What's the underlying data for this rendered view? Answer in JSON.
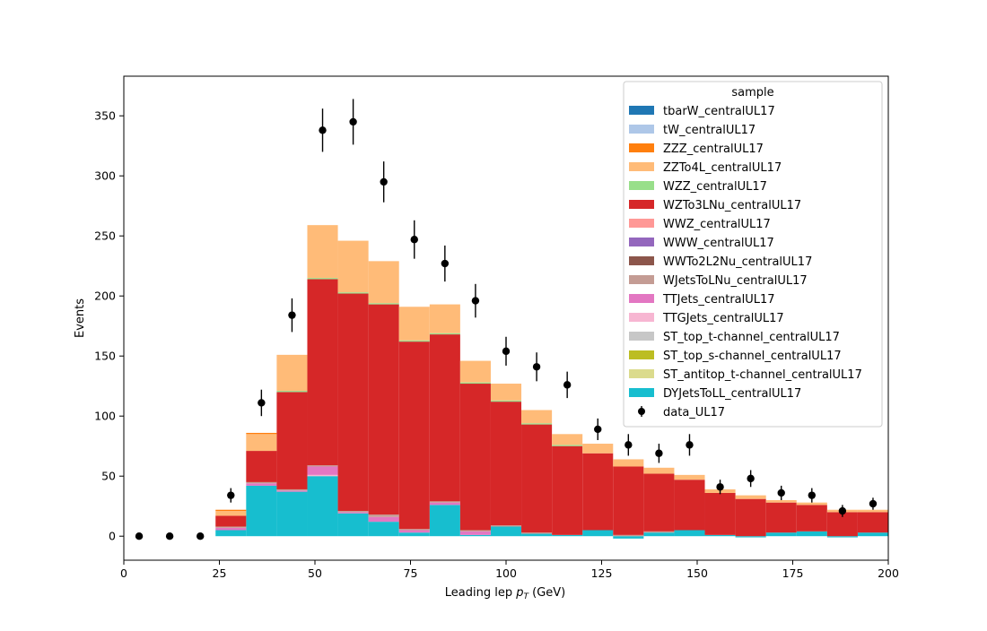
{
  "chart_data": {
    "type": "bar",
    "stacked": true,
    "xlabel": "Leading lep p_T (GeV)",
    "xlabel_main": "Leading lep ",
    "xlabel_sym": "p",
    "xlabel_sub": "T",
    "xlabel_unit": " (GeV)",
    "ylabel": "Events",
    "xlim": [
      0,
      200
    ],
    "ylim": [
      -20,
      383
    ],
    "xticks": [
      0,
      25,
      50,
      75,
      100,
      125,
      150,
      175,
      200
    ],
    "yticks": [
      0,
      50,
      100,
      150,
      200,
      250,
      300,
      350
    ],
    "grid": false,
    "legend_placement": "top-right",
    "legend_title": "sample",
    "bin_edges": [
      24,
      32,
      40,
      48,
      56,
      64,
      72,
      80,
      88,
      96,
      104,
      112,
      120,
      128,
      136,
      144,
      152,
      160,
      168,
      176,
      184,
      192,
      200
    ],
    "series": [
      {
        "name": "DYJetsToLL_centralUL17",
        "color": "#17becf",
        "values": [
          5,
          42,
          37,
          50,
          19,
          12,
          3,
          26,
          1,
          8,
          2,
          1,
          5,
          -2,
          3,
          5,
          1,
          -1,
          3,
          4,
          -1,
          3
        ]
      },
      {
        "name": "ST_antitop_t-channel_centralUL17",
        "color": "#dbdb8d",
        "values": [
          0,
          0,
          0,
          0,
          0,
          0,
          0,
          0,
          0,
          0,
          0,
          0,
          0,
          0,
          0,
          0,
          0,
          0,
          0,
          0,
          0,
          0
        ]
      },
      {
        "name": "ST_top_s-channel_centralUL17",
        "color": "#bcbd22",
        "values": [
          0,
          0,
          0,
          0,
          0,
          0,
          0,
          0,
          0,
          0,
          0,
          0,
          0,
          0,
          0,
          0,
          0,
          0,
          0,
          0,
          0,
          0
        ]
      },
      {
        "name": "ST_top_t-channel_centralUL17",
        "color": "#c7c7c7",
        "values": [
          0,
          0,
          0,
          0,
          0,
          0,
          0,
          0,
          0,
          0,
          0,
          0,
          0,
          0,
          0,
          0,
          0,
          0,
          0,
          0,
          0,
          0
        ]
      },
      {
        "name": "TTGJets_centralUL17",
        "color": "#f7b6d2",
        "values": [
          0,
          0,
          0,
          1,
          0,
          0,
          0,
          0,
          0,
          0,
          0,
          0,
          0,
          0,
          0,
          0,
          0,
          0,
          0,
          0,
          0,
          0
        ]
      },
      {
        "name": "TTJets_centralUL17",
        "color": "#e377c2",
        "values": [
          2,
          2,
          1,
          7,
          1,
          4,
          2,
          2,
          3,
          0,
          0,
          0,
          0,
          0,
          0,
          0,
          0,
          0,
          0,
          0,
          0,
          0
        ]
      },
      {
        "name": "WJetsToLNu_centralUL17",
        "color": "#c49c94",
        "values": [
          1,
          1,
          1,
          1,
          1,
          2,
          1,
          1,
          1,
          1,
          1,
          0,
          0,
          1,
          1,
          0,
          0,
          0,
          0,
          0,
          0,
          0
        ]
      },
      {
        "name": "WWTo2L2Nu_centralUL17",
        "color": "#8c564b",
        "values": [
          0,
          0,
          0,
          0,
          0,
          0,
          0,
          0,
          0,
          0,
          0,
          0,
          0,
          0,
          0,
          0,
          0,
          0,
          0,
          0,
          0,
          0
        ]
      },
      {
        "name": "WWW_centralUL17",
        "color": "#9467bd",
        "values": [
          0,
          0,
          0,
          0,
          0,
          0,
          0,
          0,
          0,
          0,
          0,
          0,
          0,
          0,
          0,
          0,
          0,
          0,
          0,
          0,
          0,
          0
        ]
      },
      {
        "name": "WWZ_centralUL17",
        "color": "#ff9896",
        "values": [
          0,
          0,
          0,
          0,
          0,
          0,
          0,
          0,
          0,
          0,
          0,
          0,
          0,
          0,
          0,
          0,
          0,
          0,
          0,
          0,
          0,
          0
        ]
      },
      {
        "name": "WZTo3LNu_centralUL17",
        "color": "#d62728",
        "values": [
          9,
          26,
          81,
          155,
          181,
          175,
          156,
          139,
          122,
          103,
          90,
          74,
          64,
          57,
          48,
          42,
          35,
          31,
          25,
          22,
          20,
          17
        ]
      },
      {
        "name": "WZZ_centralUL17",
        "color": "#98df8a",
        "values": [
          0,
          0,
          1,
          1,
          1,
          1,
          1,
          1,
          1,
          1,
          1,
          1,
          0,
          0,
          0,
          0,
          0,
          0,
          0,
          0,
          0,
          0
        ]
      },
      {
        "name": "ZZTo4L_centralUL17",
        "color": "#ffbb78",
        "values": [
          4,
          14,
          30,
          44,
          43,
          35,
          28,
          24,
          18,
          14,
          11,
          9,
          8,
          6,
          5,
          4,
          3,
          3,
          2,
          2,
          2,
          2
        ]
      },
      {
        "name": "ZZZ_centralUL17",
        "color": "#ff7f0e",
        "values": [
          1,
          1,
          0,
          0,
          0,
          0,
          0,
          0,
          0,
          0,
          0,
          0,
          0,
          0,
          0,
          0,
          0,
          0,
          0,
          0,
          0,
          0
        ]
      },
      {
        "name": "tW_centralUL17",
        "color": "#aec7e8",
        "values": [
          0,
          0,
          0,
          0,
          0,
          0,
          0,
          0,
          0,
          0,
          0,
          0,
          0,
          0,
          0,
          0,
          0,
          0,
          0,
          0,
          0,
          0
        ]
      },
      {
        "name": "tbarW_centralUL17",
        "color": "#1f77b4",
        "values": [
          0,
          0,
          0,
          0,
          0,
          0,
          0,
          0,
          0,
          0,
          0,
          0,
          0,
          0,
          0,
          0,
          0,
          0,
          0,
          0,
          0,
          0
        ]
      }
    ],
    "data_series": {
      "name": "data_UL17",
      "color": "#000000",
      "x": [
        4,
        12,
        20,
        28,
        36,
        44,
        52,
        60,
        68,
        76,
        84,
        92,
        100,
        108,
        116,
        124,
        132,
        140,
        148,
        156,
        164,
        172,
        180,
        188,
        196
      ],
      "y": [
        0,
        0,
        0,
        34,
        111,
        184,
        338,
        345,
        295,
        247,
        227,
        196,
        154,
        141,
        126,
        89,
        76,
        69,
        76,
        41,
        48,
        36,
        34,
        21,
        27
      ],
      "yerr": [
        0,
        0,
        0,
        6,
        11,
        14,
        18,
        19,
        17,
        16,
        15,
        14,
        12,
        12,
        11,
        9,
        9,
        8,
        9,
        6,
        7,
        6,
        6,
        5,
        5
      ]
    },
    "legend_entries": [
      {
        "name": "tbarW_centralUL17",
        "color": "#1f77b4",
        "kind": "patch"
      },
      {
        "name": "tW_centralUL17",
        "color": "#aec7e8",
        "kind": "patch"
      },
      {
        "name": "ZZZ_centralUL17",
        "color": "#ff7f0e",
        "kind": "patch"
      },
      {
        "name": "ZZTo4L_centralUL17",
        "color": "#ffbb78",
        "kind": "patch"
      },
      {
        "name": "WZZ_centralUL17",
        "color": "#98df8a",
        "kind": "patch"
      },
      {
        "name": "WZTo3LNu_centralUL17",
        "color": "#d62728",
        "kind": "patch"
      },
      {
        "name": "WWZ_centralUL17",
        "color": "#ff9896",
        "kind": "patch"
      },
      {
        "name": "WWW_centralUL17",
        "color": "#9467bd",
        "kind": "patch"
      },
      {
        "name": "WWTo2L2Nu_centralUL17",
        "color": "#8c564b",
        "kind": "patch"
      },
      {
        "name": "WJetsToLNu_centralUL17",
        "color": "#c49c94",
        "kind": "patch"
      },
      {
        "name": "TTJets_centralUL17",
        "color": "#e377c2",
        "kind": "patch"
      },
      {
        "name": "TTGJets_centralUL17",
        "color": "#f7b6d2",
        "kind": "patch"
      },
      {
        "name": "ST_top_t-channel_centralUL17",
        "color": "#c7c7c7",
        "kind": "patch"
      },
      {
        "name": "ST_top_s-channel_centralUL17",
        "color": "#bcbd22",
        "kind": "patch"
      },
      {
        "name": "ST_antitop_t-channel_centralUL17",
        "color": "#dbdb8d",
        "kind": "patch"
      },
      {
        "name": "DYJetsToLL_centralUL17",
        "color": "#17becf",
        "kind": "patch"
      },
      {
        "name": "data_UL17",
        "color": "#000000",
        "kind": "errorbar"
      }
    ]
  }
}
